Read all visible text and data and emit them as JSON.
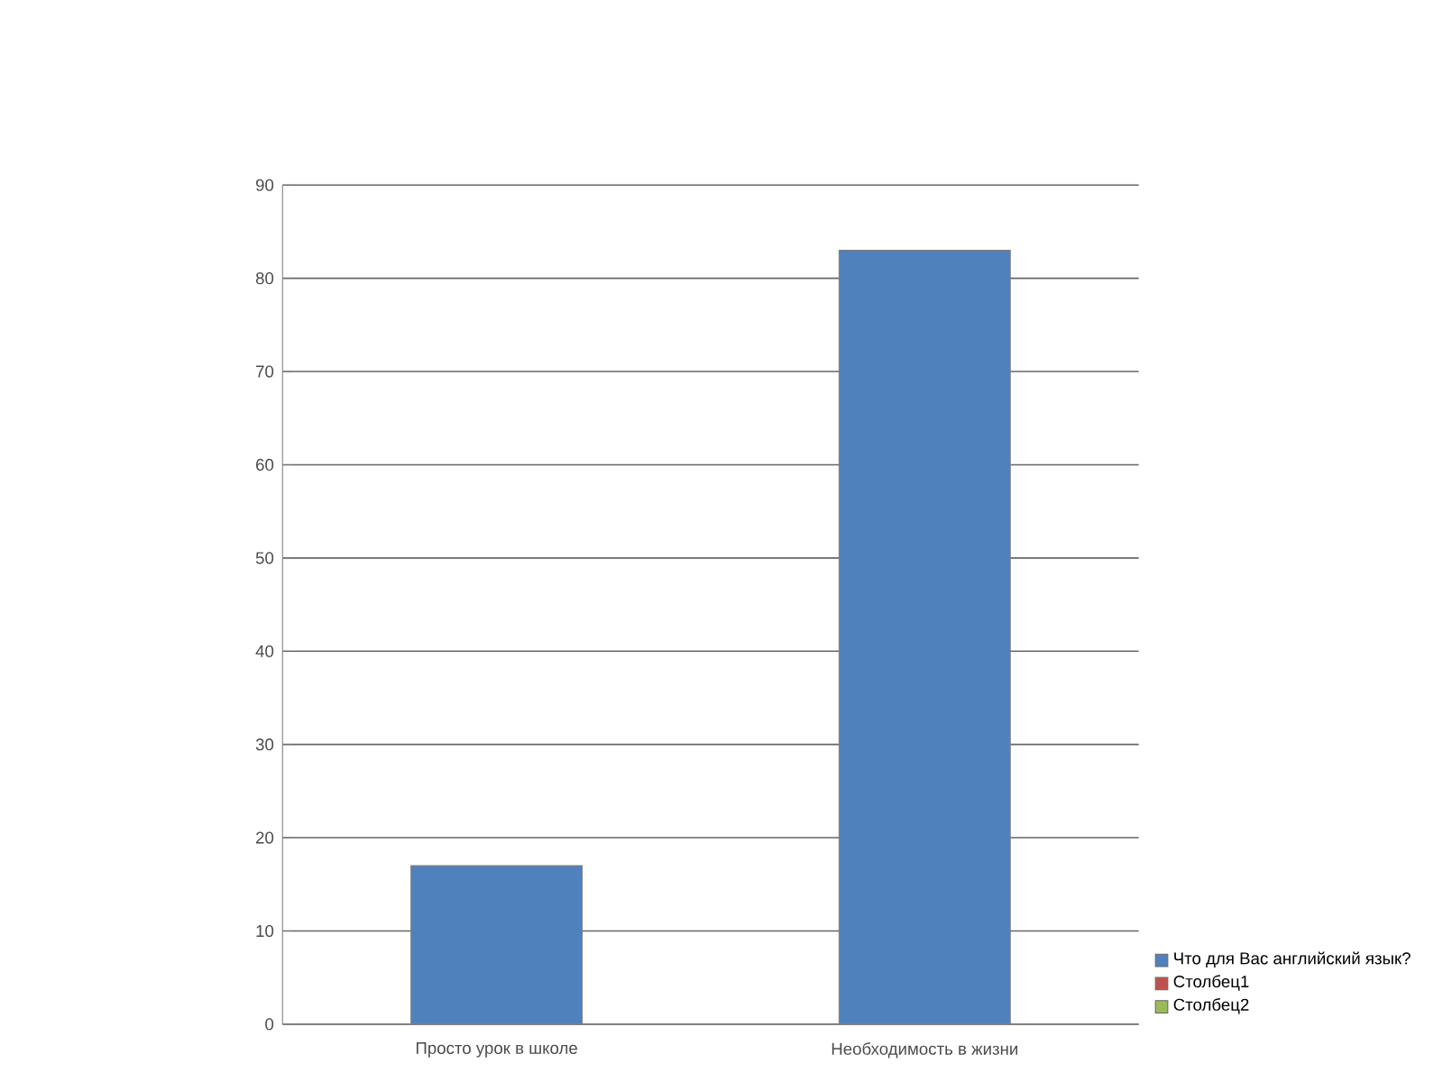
{
  "chart_data": {
    "type": "bar",
    "categories": [
      "Просто урок в школе",
      "Необходимость в жизни"
    ],
    "series": [
      {
        "name": "Что для Вас английский язык?",
        "color": "#4f81bd",
        "values": [
          17,
          83
        ]
      },
      {
        "name": "Столбец1",
        "color": "#c0504d",
        "values": [
          null,
          null
        ]
      },
      {
        "name": "Столбец2",
        "color": "#9bbb59",
        "values": [
          null,
          null
        ]
      }
    ],
    "ylim": [
      0,
      90
    ],
    "yticks": [
      0,
      10,
      20,
      30,
      40,
      50,
      60,
      70,
      80,
      90
    ],
    "grid": "y",
    "legend": "bottom right"
  }
}
